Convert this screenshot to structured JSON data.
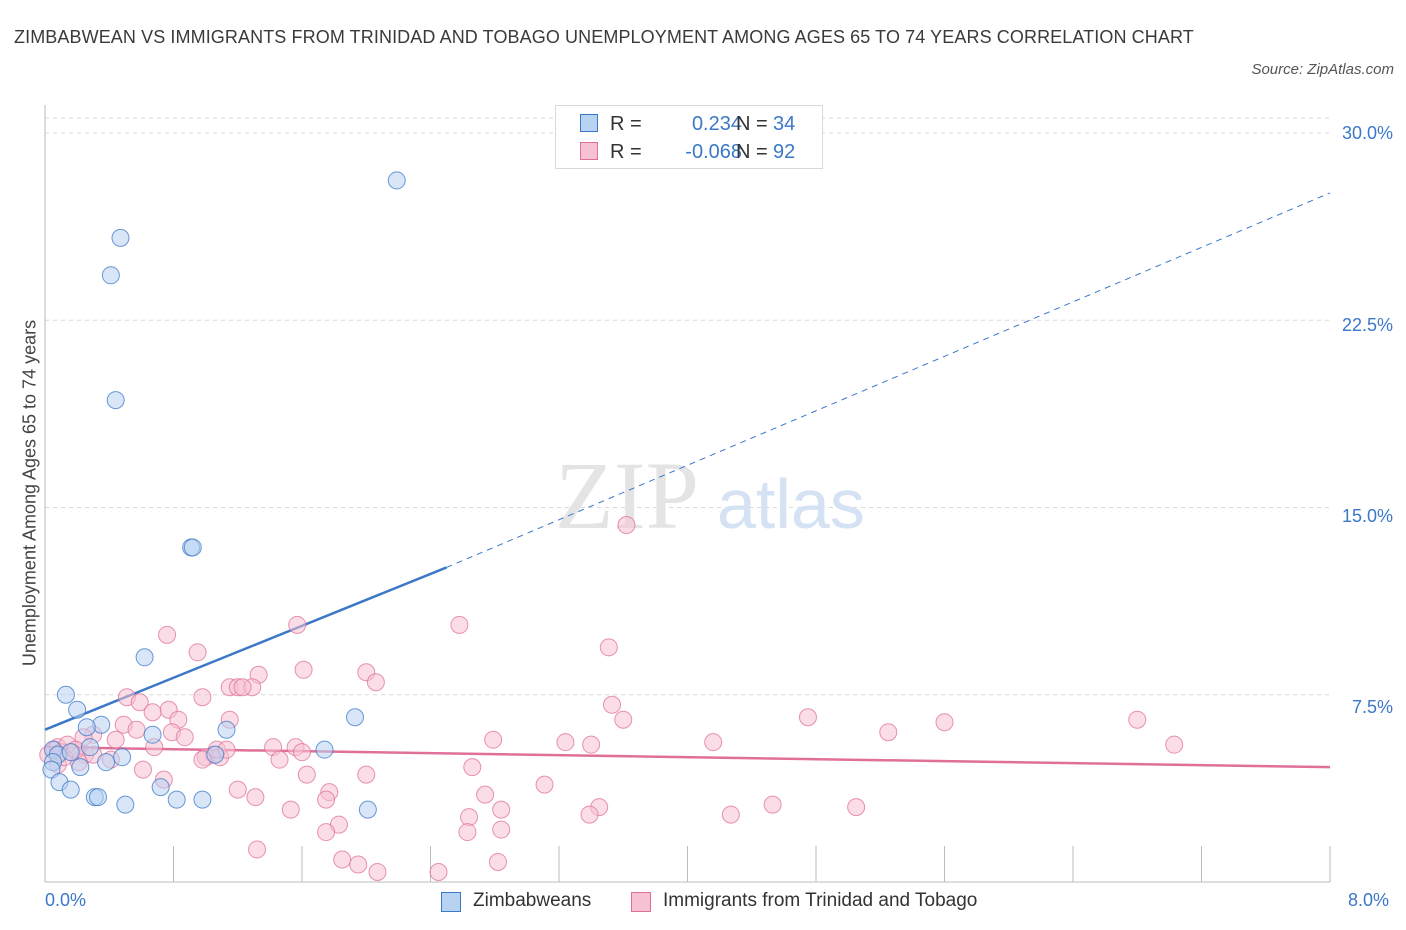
{
  "title": "ZIMBABWEAN VS IMMIGRANTS FROM TRINIDAD AND TOBAGO UNEMPLOYMENT AMONG AGES 65 TO 74 YEARS CORRELATION CHART",
  "source": "Source: ZipAtlas.com",
  "watermark": {
    "zip": "ZIP",
    "atlas": "atlas"
  },
  "colors": {
    "blue": "#3b78c8",
    "blue_fill": "#b8d2f2",
    "pink": "#e0709a",
    "pink_fill": "#f6c1d2",
    "grid": "#d8d8d8",
    "text": "#333333"
  },
  "legend": {
    "rows": [
      {
        "r_label": "R =",
        "r_value": "0.234",
        "n_label": "N =",
        "n_value": "34"
      },
      {
        "r_label": "R =",
        "r_value": "-0.068",
        "n_label": "N =",
        "n_value": "92"
      }
    ]
  },
  "bottom_legend": [
    "Zimbabweans",
    "Immigrants from Trinidad and Tobago"
  ],
  "chart_data": {
    "type": "scatter",
    "title": "ZIMBABWEAN VS IMMIGRANTS FROM TRINIDAD AND TOBAGO UNEMPLOYMENT AMONG AGES 65 TO 74 YEARS CORRELATION CHART",
    "xlabel": "",
    "ylabel": "Unemployment Among Ages 65 to 74 years",
    "xlim": [
      0,
      8
    ],
    "ylim": [
      0,
      30
    ],
    "x_tick_labels": [
      "0.0%",
      "8.0%"
    ],
    "y_ticks": [
      7.5,
      15.0,
      22.5,
      30.0
    ],
    "y_tick_labels": [
      "7.5%",
      "15.0%",
      "22.5%",
      "30.0%"
    ],
    "grid": "horizontal dashed",
    "legend_position": "top-center",
    "series": [
      {
        "name": "Zimbabweans",
        "color": "#3b78c8",
        "trend": {
          "x0": 0,
          "y0": 6.1,
          "x1": 2.5,
          "y1": 12.6,
          "dashed_to_x": 8.0,
          "dashed_to_y": 27.6
        },
        "points": [
          [
            2.19,
            28.1
          ],
          [
            0.47,
            25.8
          ],
          [
            0.41,
            24.3
          ],
          [
            0.44,
            19.3
          ],
          [
            0.91,
            13.4
          ],
          [
            0.92,
            13.4
          ],
          [
            0.62,
            9.0
          ],
          [
            0.13,
            7.5
          ],
          [
            0.2,
            6.9
          ],
          [
            1.93,
            6.6
          ],
          [
            0.35,
            6.3
          ],
          [
            0.26,
            6.2
          ],
          [
            1.13,
            6.1
          ],
          [
            0.67,
            5.9
          ],
          [
            0.28,
            5.4
          ],
          [
            0.05,
            5.3
          ],
          [
            1.74,
            5.3
          ],
          [
            0.08,
            5.1
          ],
          [
            0.16,
            5.2
          ],
          [
            0.48,
            5.0
          ],
          [
            1.06,
            5.1
          ],
          [
            0.38,
            4.8
          ],
          [
            0.05,
            4.8
          ],
          [
            0.22,
            4.6
          ],
          [
            0.04,
            4.5
          ],
          [
            0.09,
            4.0
          ],
          [
            0.72,
            3.8
          ],
          [
            0.16,
            3.7
          ],
          [
            0.31,
            3.4
          ],
          [
            0.33,
            3.4
          ],
          [
            0.82,
            3.3
          ],
          [
            0.98,
            3.3
          ],
          [
            0.5,
            3.1
          ],
          [
            2.01,
            2.9
          ]
        ]
      },
      {
        "name": "Immigrants from Trinidad and Tobago",
        "color": "#e0709a",
        "trend": {
          "x0": 0,
          "y0": 5.4,
          "x1": 8.0,
          "y1": 4.6
        },
        "points": [
          [
            3.62,
            14.3
          ],
          [
            2.58,
            10.3
          ],
          [
            1.57,
            10.3
          ],
          [
            0.76,
            9.9
          ],
          [
            0.95,
            9.2
          ],
          [
            3.51,
            9.4
          ],
          [
            1.61,
            8.5
          ],
          [
            2.0,
            8.4
          ],
          [
            1.33,
            8.3
          ],
          [
            2.06,
            8.0
          ],
          [
            1.15,
            7.8
          ],
          [
            1.2,
            7.8
          ],
          [
            1.29,
            7.8
          ],
          [
            1.23,
            7.8
          ],
          [
            0.51,
            7.4
          ],
          [
            0.59,
            7.2
          ],
          [
            0.98,
            7.4
          ],
          [
            3.53,
            7.1
          ],
          [
            0.77,
            6.9
          ],
          [
            0.67,
            6.8
          ],
          [
            4.75,
            6.6
          ],
          [
            5.6,
            6.4
          ],
          [
            6.8,
            6.5
          ],
          [
            1.15,
            6.5
          ],
          [
            0.83,
            6.5
          ],
          [
            3.6,
            6.5
          ],
          [
            0.49,
            6.3
          ],
          [
            0.57,
            6.1
          ],
          [
            0.79,
            6.0
          ],
          [
            0.87,
            5.8
          ],
          [
            5.25,
            6.0
          ],
          [
            0.3,
            5.9
          ],
          [
            0.44,
            5.7
          ],
          [
            0.24,
            5.8
          ],
          [
            2.79,
            5.7
          ],
          [
            3.24,
            5.6
          ],
          [
            4.16,
            5.6
          ],
          [
            3.4,
            5.5
          ],
          [
            7.03,
            5.5
          ],
          [
            0.68,
            5.4
          ],
          [
            1.42,
            5.4
          ],
          [
            1.56,
            5.4
          ],
          [
            0.06,
            5.3
          ],
          [
            1.05,
            5.1
          ],
          [
            0.17,
            5.2
          ],
          [
            0.25,
            5.1
          ],
          [
            0.02,
            5.1
          ],
          [
            1.0,
            5.0
          ],
          [
            1.09,
            5.0
          ],
          [
            0.98,
            4.9
          ],
          [
            1.46,
            4.9
          ],
          [
            0.3,
            5.1
          ],
          [
            0.41,
            4.9
          ],
          [
            0.21,
            4.8
          ],
          [
            0.08,
            4.7
          ],
          [
            1.6,
            5.2
          ],
          [
            0.61,
            4.5
          ],
          [
            2.66,
            4.6
          ],
          [
            0.74,
            4.1
          ],
          [
            2.0,
            4.3
          ],
          [
            1.63,
            4.3
          ],
          [
            3.11,
            3.9
          ],
          [
            1.2,
            3.7
          ],
          [
            1.77,
            3.6
          ],
          [
            2.74,
            3.5
          ],
          [
            1.31,
            3.4
          ],
          [
            1.75,
            3.3
          ],
          [
            3.45,
            3.0
          ],
          [
            4.53,
            3.1
          ],
          [
            5.05,
            3.0
          ],
          [
            2.84,
            2.9
          ],
          [
            1.53,
            2.9
          ],
          [
            3.39,
            2.7
          ],
          [
            4.27,
            2.7
          ],
          [
            2.64,
            2.6
          ],
          [
            1.83,
            2.3
          ],
          [
            1.75,
            2.0
          ],
          [
            2.63,
            2.0
          ],
          [
            2.84,
            2.1
          ],
          [
            1.32,
            1.3
          ],
          [
            1.85,
            0.9
          ],
          [
            1.95,
            0.7
          ],
          [
            2.82,
            0.8
          ],
          [
            2.07,
            0.4
          ],
          [
            2.45,
            0.4
          ],
          [
            0.08,
            5.4
          ],
          [
            0.1,
            5.2
          ],
          [
            0.14,
            5.5
          ],
          [
            0.12,
            5.0
          ],
          [
            1.07,
            5.3
          ],
          [
            1.13,
            5.3
          ],
          [
            0.19,
            5.3
          ]
        ]
      }
    ]
  }
}
